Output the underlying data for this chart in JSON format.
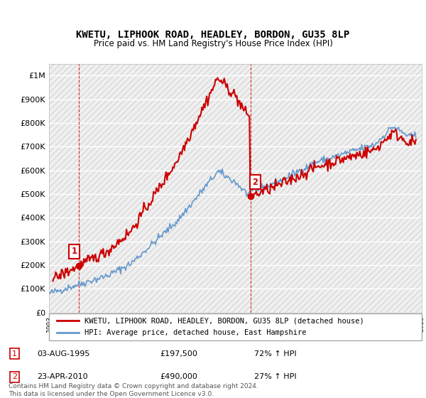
{
  "title": "KWETU, LIPHOOK ROAD, HEADLEY, BORDON, GU35 8LP",
  "subtitle": "Price paid vs. HM Land Registry's House Price Index (HPI)",
  "ylim": [
    0,
    1050000
  ],
  "yticks": [
    0,
    100000,
    200000,
    300000,
    400000,
    500000,
    600000,
    700000,
    800000,
    900000,
    1000000
  ],
  "ytick_labels": [
    "£0",
    "£100K",
    "£200K",
    "£300K",
    "£400K",
    "£500K",
    "£600K",
    "£700K",
    "£800K",
    "£900K",
    "£1M"
  ],
  "sale1_x": 1995.58,
  "sale1_y": 197500,
  "sale1_label": "1",
  "sale2_x": 2010.31,
  "sale2_y": 490000,
  "sale2_label": "2",
  "property_color": "#cc0000",
  "hpi_color": "#6699cc",
  "legend_property": "KWETU, LIPHOOK ROAD, HEADLEY, BORDON, GU35 8LP (detached house)",
  "legend_hpi": "HPI: Average price, detached house, East Hampshire",
  "annotation1_date": "03-AUG-1995",
  "annotation1_price": "£197,500",
  "annotation1_hpi": "72% ↑ HPI",
  "annotation2_date": "23-APR-2010",
  "annotation2_price": "£490,000",
  "annotation2_hpi": "27% ↑ HPI",
  "footer": "Contains HM Land Registry data © Crown copyright and database right 2024.\nThis data is licensed under the Open Government Licence v3.0.",
  "xmin": 1993,
  "xmax": 2025
}
